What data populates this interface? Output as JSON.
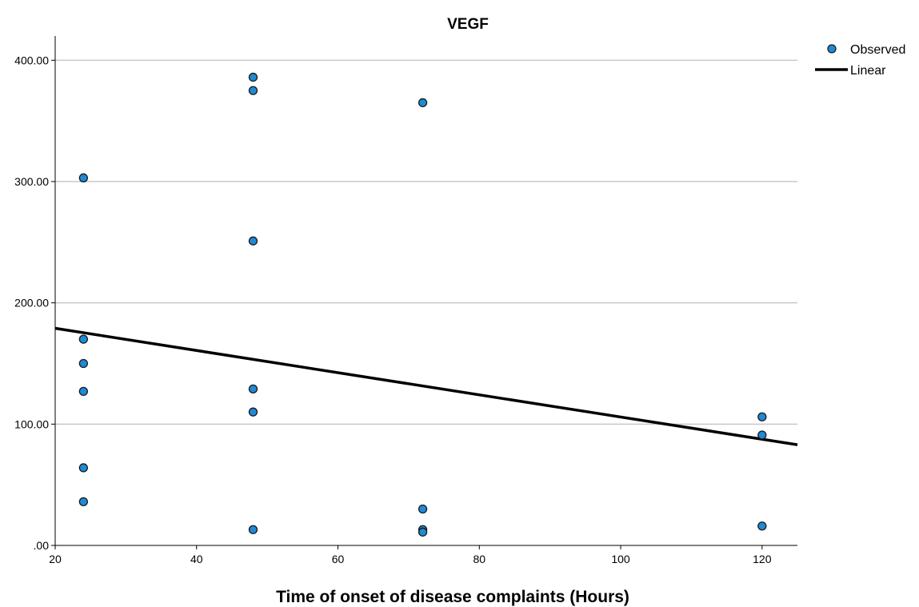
{
  "chart_data": {
    "type": "scatter",
    "title": "VEGF",
    "xlabel": "Time of onset of disease complaints (Hours)",
    "ylabel": "",
    "xlim": [
      20,
      125
    ],
    "ylim": [
      0,
      420
    ],
    "x_ticks": [
      20,
      40,
      60,
      80,
      100,
      120
    ],
    "x_tick_labels": [
      "20",
      "40",
      "60",
      "80",
      "100",
      "120"
    ],
    "y_ticks": [
      0,
      100,
      200,
      300,
      400
    ],
    "y_tick_labels": [
      ".00",
      "100.00",
      "200.00",
      "300.00",
      "400.00"
    ],
    "grid": "horizontal",
    "legend_position": "top-right",
    "series": [
      {
        "name": "Observed",
        "kind": "points",
        "color": "#1f8ad6",
        "points": [
          {
            "x": 24,
            "y": 303
          },
          {
            "x": 24,
            "y": 170
          },
          {
            "x": 24,
            "y": 150
          },
          {
            "x": 24,
            "y": 127
          },
          {
            "x": 24,
            "y": 64
          },
          {
            "x": 24,
            "y": 36
          },
          {
            "x": 48,
            "y": 386
          },
          {
            "x": 48,
            "y": 375
          },
          {
            "x": 48,
            "y": 251
          },
          {
            "x": 48,
            "y": 129
          },
          {
            "x": 48,
            "y": 110
          },
          {
            "x": 48,
            "y": 13
          },
          {
            "x": 72,
            "y": 365
          },
          {
            "x": 72,
            "y": 30
          },
          {
            "x": 72,
            "y": 13
          },
          {
            "x": 72,
            "y": 11
          },
          {
            "x": 120,
            "y": 106
          },
          {
            "x": 120,
            "y": 91
          },
          {
            "x": 120,
            "y": 16
          }
        ]
      },
      {
        "name": "Linear",
        "kind": "line",
        "color": "#000000",
        "points": [
          {
            "x": 20,
            "y": 179
          },
          {
            "x": 125,
            "y": 83
          }
        ]
      }
    ]
  }
}
